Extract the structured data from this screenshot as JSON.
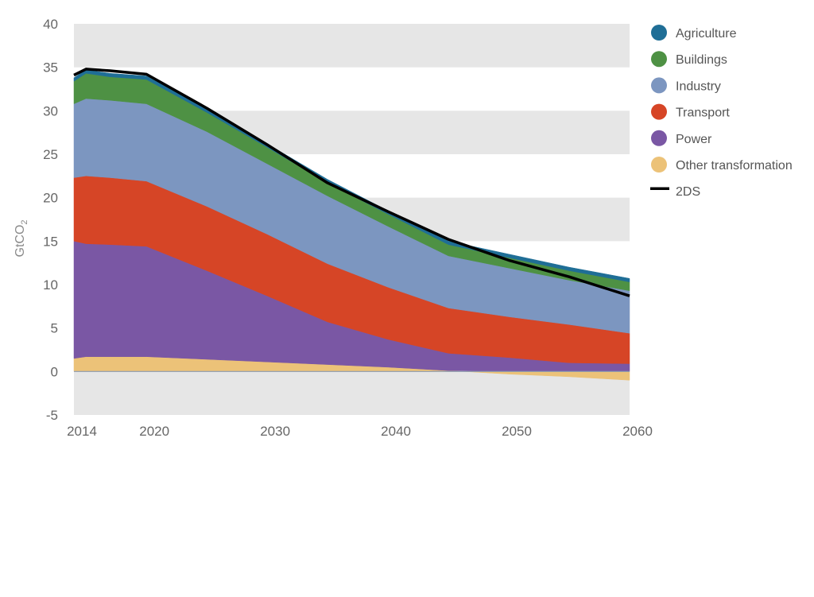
{
  "chart_data": {
    "type": "area",
    "ylabel": "GtCO",
    "ylabel_sub": "2",
    "ylim": [
      -5,
      40
    ],
    "y_ticks": [
      40,
      35,
      30,
      25,
      20,
      15,
      10,
      5,
      0,
      -5
    ],
    "xlim": [
      2014,
      2060
    ],
    "x_ticks": [
      {
        "label": "2014",
        "value": 2014
      },
      {
        "label": "2020",
        "value": 2020
      },
      {
        "label": "2030",
        "value": 2030
      },
      {
        "label": "2040",
        "value": 2040
      },
      {
        "label": "2050",
        "value": 2050
      },
      {
        "label": "2060",
        "value": 2060
      }
    ],
    "grid": "alternating horizontal bands",
    "legend_position": "right",
    "x": [
      2014,
      2015,
      2017,
      2020,
      2025,
      2030,
      2035,
      2040,
      2045,
      2050,
      2055,
      2060
    ],
    "series": [
      {
        "name": "Other transformation",
        "color": "#ecc278",
        "values": [
          1.5,
          1.7,
          1.7,
          1.7,
          1.4,
          1.1,
          0.8,
          0.5,
          0.1,
          -0.3,
          -0.6,
          -1.0
        ]
      },
      {
        "name": "Power",
        "color": "#7a57a4",
        "values": [
          13.5,
          13.0,
          12.9,
          12.7,
          10.2,
          7.6,
          4.9,
          3.2,
          2.0,
          1.6,
          1.0,
          0.9
        ]
      },
      {
        "name": "Transport",
        "color": "#d64526",
        "values": [
          7.3,
          7.8,
          7.7,
          7.5,
          7.4,
          7.1,
          6.7,
          6.0,
          5.2,
          4.7,
          4.4,
          3.5
        ]
      },
      {
        "name": "Industry",
        "color": "#7c96c0",
        "values": [
          8.5,
          8.9,
          8.9,
          8.9,
          8.6,
          8.1,
          7.8,
          7.0,
          6.0,
          5.6,
          5.1,
          4.9
        ]
      },
      {
        "name": "Buildings",
        "color": "#4e9144",
        "values": [
          2.6,
          2.9,
          2.7,
          2.8,
          2.2,
          1.9,
          1.5,
          1.4,
          1.3,
          1.2,
          1.1,
          1.0
        ]
      },
      {
        "name": "Agriculture",
        "color": "#1f6e96",
        "values": [
          0.4,
          0.4,
          0.4,
          0.4,
          0.4,
          0.4,
          0.4,
          0.4,
          0.4,
          0.4,
          0.4,
          0.4
        ]
      }
    ],
    "line_series": {
      "name": "2DS",
      "color": "#000000",
      "values": [
        34.1,
        34.8,
        34.6,
        34.2,
        30.3,
        26.1,
        21.7,
        18.4,
        15.2,
        12.8,
        10.9,
        8.7
      ]
    },
    "legend": [
      {
        "label": "Agriculture",
        "color": "#1f6e96",
        "marker": "dot"
      },
      {
        "label": "Buildings",
        "color": "#4e9144",
        "marker": "dot"
      },
      {
        "label": "Industry",
        "color": "#7c96c0",
        "marker": "dot"
      },
      {
        "label": "Transport",
        "color": "#d64526",
        "marker": "dot"
      },
      {
        "label": "Power",
        "color": "#7a57a4",
        "marker": "dot"
      },
      {
        "label": "Other transformation",
        "color": "#ecc278",
        "marker": "dot"
      },
      {
        "label": "2DS",
        "color": "#000000",
        "marker": "line"
      }
    ],
    "band_color": "#e6e6e6",
    "zero_line_color": "#8a9ab0"
  }
}
